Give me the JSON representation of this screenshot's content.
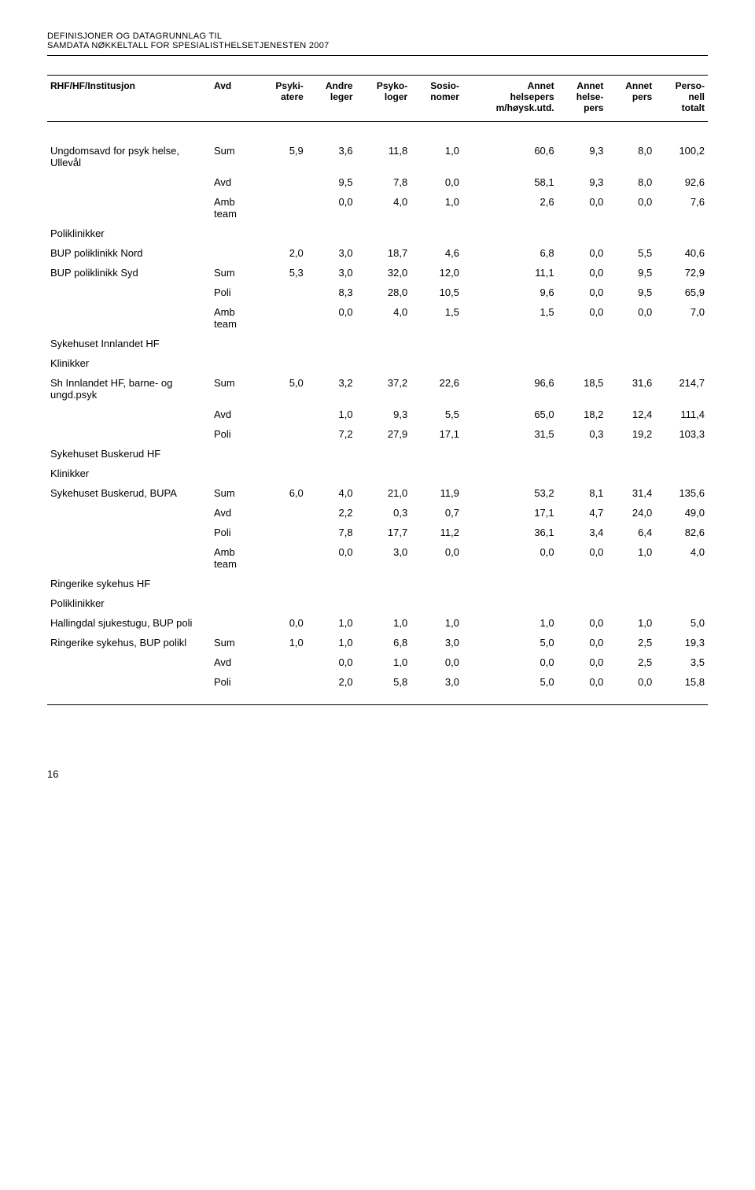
{
  "header": {
    "line1_a": "D",
    "line1_b": "EFINISJONER OG DATAGRUNNLAG TIL",
    "line2_a": "SAMDATA N",
    "line2_b": "ØKKELTALL FOR SPESIALISTHELSETJENESTEN",
    "line2_c": " 2007"
  },
  "columns": {
    "c0": "RHF/HF/Institusjon",
    "c1": "Avd",
    "c2a": "Psyki-",
    "c2b": "atere",
    "c3a": "Andre",
    "c3b": "leger",
    "c4a": "Psyko-",
    "c4b": "loger",
    "c5a": "Sosio-",
    "c5b": "nomer",
    "c6a": "Annet",
    "c6b": "helsepers",
    "c6c": "m/høysk.utd.",
    "c7a": "Annet",
    "c7b": "helse-",
    "c7c": "pers",
    "c8a": "Annet",
    "c8b": "pers",
    "c9a": "Perso-",
    "c9b": "nell",
    "c9c": "totalt"
  },
  "rows": [
    {
      "label": "Ungdomsavd for psyk helse, Ullevål",
      "type": "Sum",
      "v": [
        "5,9",
        "3,6",
        "11,8",
        "1,0",
        "60,6",
        "9,3",
        "8,0",
        "100,2"
      ]
    },
    {
      "label": "",
      "type": "Avd",
      "v": [
        "9,5",
        "7,8",
        "0,0",
        "58,1",
        "9,3",
        "8,0",
        "92,6"
      ],
      "skip1": true
    },
    {
      "label": "",
      "type": "Amb team",
      "v": [
        "0,0",
        "4,0",
        "1,0",
        "2,6",
        "0,0",
        "0,0",
        "7,6"
      ],
      "skip1": true
    },
    {
      "label": "Poliklinikker",
      "section": true
    },
    {
      "label": "BUP poliklinikk Nord",
      "type": "",
      "v": [
        "2,0",
        "3,0",
        "18,7",
        "4,6",
        "6,8",
        "0,0",
        "5,5",
        "40,6"
      ]
    },
    {
      "label": "BUP poliklinikk Syd",
      "type": "Sum",
      "v": [
        "5,3",
        "3,0",
        "32,0",
        "12,0",
        "11,1",
        "0,0",
        "9,5",
        "72,9"
      ]
    },
    {
      "label": "",
      "type": "Poli",
      "v": [
        "8,3",
        "28,0",
        "10,5",
        "9,6",
        "0,0",
        "9,5",
        "65,9"
      ],
      "skip1": true
    },
    {
      "label": "",
      "type": "Amb team",
      "v": [
        "0,0",
        "4,0",
        "1,5",
        "1,5",
        "0,0",
        "0,0",
        "7,0"
      ],
      "skip1": true
    },
    {
      "label": "Sykehuset Innlandet HF",
      "section": true
    },
    {
      "label": "Klinikker",
      "section": true
    },
    {
      "label": "Sh Innlandet HF, barne- og ungd.psyk",
      "type": "Sum",
      "v": [
        "5,0",
        "3,2",
        "37,2",
        "22,6",
        "96,6",
        "18,5",
        "31,6",
        "214,7"
      ]
    },
    {
      "label": "",
      "type": "Avd",
      "v": [
        "1,0",
        "9,3",
        "5,5",
        "65,0",
        "18,2",
        "12,4",
        "111,4"
      ],
      "skip1": true
    },
    {
      "label": "",
      "type": "Poli",
      "v": [
        "7,2",
        "27,9",
        "17,1",
        "31,5",
        "0,3",
        "19,2",
        "103,3"
      ],
      "skip1": true
    },
    {
      "label": "Sykehuset Buskerud HF",
      "section": true
    },
    {
      "label": "Klinikker",
      "section": true
    },
    {
      "label": "Sykehuset Buskerud, BUPA",
      "type": "Sum",
      "v": [
        "6,0",
        "4,0",
        "21,0",
        "11,9",
        "53,2",
        "8,1",
        "31,4",
        "135,6"
      ]
    },
    {
      "label": "",
      "type": "Avd",
      "v": [
        "2,2",
        "0,3",
        "0,7",
        "17,1",
        "4,7",
        "24,0",
        "49,0"
      ],
      "skip1": true
    },
    {
      "label": "",
      "type": "Poli",
      "v": [
        "7,8",
        "17,7",
        "11,2",
        "36,1",
        "3,4",
        "6,4",
        "82,6"
      ],
      "skip1": true
    },
    {
      "label": "",
      "type": "Amb team",
      "v": [
        "0,0",
        "3,0",
        "0,0",
        "0,0",
        "0,0",
        "1,0",
        "4,0"
      ],
      "skip1": true
    },
    {
      "label": "Ringerike sykehus HF",
      "section": true
    },
    {
      "label": "Poliklinikker",
      "section": true
    },
    {
      "label": "Hallingdal sjukestugu, BUP poli",
      "type": "",
      "v": [
        "0,0",
        "1,0",
        "1,0",
        "1,0",
        "1,0",
        "0,0",
        "1,0",
        "5,0"
      ]
    },
    {
      "label": "Ringerike sykehus, BUP polikl",
      "type": "Sum",
      "v": [
        "1,0",
        "1,0",
        "6,8",
        "3,0",
        "5,0",
        "0,0",
        "2,5",
        "19,3"
      ]
    },
    {
      "label": "",
      "type": "Avd",
      "v": [
        "0,0",
        "1,0",
        "0,0",
        "0,0",
        "0,0",
        "2,5",
        "3,5"
      ],
      "skip1": true
    },
    {
      "label": "",
      "type": "Poli",
      "v": [
        "2,0",
        "5,8",
        "3,0",
        "5,0",
        "0,0",
        "0,0",
        "15,8"
      ],
      "skip1": true
    }
  ],
  "pageNumber": "16"
}
